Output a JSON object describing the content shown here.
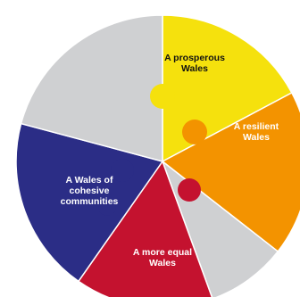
{
  "wheel": {
    "segments": [
      {
        "id": "prosperous",
        "label_lines": [
          "A prosperous",
          "Wales"
        ],
        "color": "#f5e10d",
        "text_color": "#111111"
      },
      {
        "id": "resilient",
        "label_lines": [
          "A resilient",
          "Wales"
        ],
        "color": "#f39300",
        "text_color": "#ffffff"
      },
      {
        "id": "segment-4",
        "label_lines": [],
        "color": "#cfd0d2",
        "text_color": "#111111"
      },
      {
        "id": "more-equal",
        "label_lines": [
          "A more equal",
          "Wales"
        ],
        "color": "#c4122f",
        "text_color": "#ffffff"
      },
      {
        "id": "cohesive",
        "label_lines": [
          "A Wales of",
          "cohesive",
          "communities"
        ],
        "color": "#2b2d86",
        "text_color": "#ffffff"
      },
      {
        "id": "segment-6",
        "label_lines": [],
        "color": "#cfd0d2",
        "text_color": "#111111"
      }
    ],
    "gap_color": "#ffffff"
  }
}
